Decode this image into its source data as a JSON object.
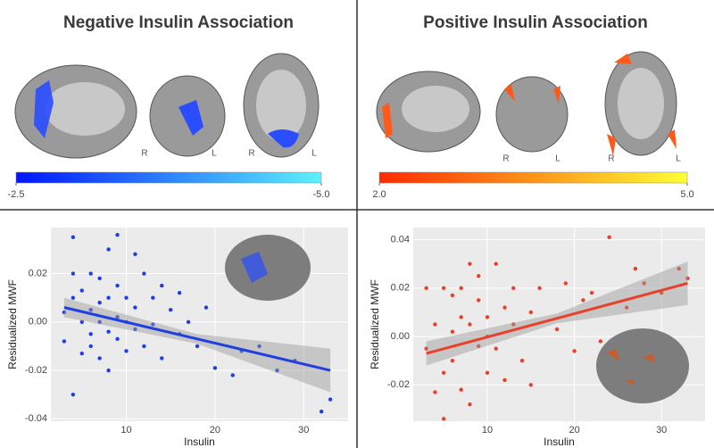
{
  "panels": [
    {
      "title": "Negative Insulin Association",
      "orientation_labels": [
        "R",
        "L",
        "R",
        "L"
      ],
      "colorbar": {
        "colors": [
          "#0015ff",
          "#5cf2ff"
        ],
        "range": [
          -2.5,
          -5
        ],
        "ticks": [
          -2.5,
          {
            "value": -5,
            "label": "-5.0"
          }
        ]
      }
    },
    {
      "title": "Positive Insulin Association",
      "orientation_labels": [
        "R",
        "L",
        "R",
        "L"
      ],
      "colorbar": {
        "colors": [
          "#ff2a00",
          "#ffff33"
        ],
        "range": [
          2,
          5
        ],
        "ticks": [
          {
            "value": 2,
            "label": "2.0"
          },
          {
            "value": 5,
            "label": "5.0"
          }
        ]
      }
    }
  ],
  "chart_data": [
    {
      "type": "scatter",
      "xlabel": "Insulin",
      "ylabel": "Residualized MWF",
      "color": "#1f3fe0",
      "fit_color": "#1f3fe0",
      "xlim": [
        1.5,
        35
      ],
      "ylim": [
        -0.041,
        0.039
      ],
      "xticks": [
        10,
        20,
        30
      ],
      "yticks": [
        {
          "value": -0.04,
          "label": "-0.04"
        },
        {
          "value": -0.02,
          "label": "-0.02"
        },
        {
          "value": 0,
          "label": "0.00"
        },
        {
          "value": 0.02,
          "label": "0.02"
        }
      ],
      "x": [
        3,
        3,
        4,
        4,
        4,
        4,
        5,
        5,
        5,
        6,
        6,
        6,
        6,
        7,
        7,
        7,
        7,
        8,
        8,
        8,
        8,
        9,
        9,
        9,
        9,
        10,
        10,
        10,
        11,
        11,
        11,
        12,
        12,
        13,
        13,
        14,
        14,
        15,
        16,
        16,
        17,
        18,
        19,
        20,
        22,
        23,
        25,
        27,
        32,
        33,
        29
      ],
      "values": [
        0.004,
        -0.008,
        0.035,
        0.02,
        -0.03,
        0.01,
        0.013,
        0,
        -0.013,
        0.02,
        0.005,
        -0.005,
        -0.01,
        0.018,
        0.008,
        0,
        -0.015,
        0.03,
        0.01,
        -0.004,
        -0.02,
        0.036,
        0.015,
        0.002,
        -0.007,
        0.01,
        -0.012,
        0,
        0.028,
        0.006,
        -0.003,
        0.02,
        -0.01,
        0.01,
        -0.001,
        0.015,
        -0.015,
        0.005,
        0.012,
        -0.005,
        0,
        -0.01,
        0.006,
        -0.019,
        -0.022,
        -0.012,
        -0.01,
        -0.02,
        -0.037,
        -0.032,
        -0.016
      ],
      "fit": {
        "x": [
          3,
          18,
          33
        ],
        "values": [
          0.006,
          -0.007,
          -0.02
        ],
        "lower": [
          0.002,
          -0.009,
          -0.029
        ],
        "upper": [
          0.01,
          -0.005,
          -0.011
        ]
      }
    },
    {
      "type": "scatter",
      "xlabel": "Insulin",
      "ylabel": "Residualized MWF",
      "color": "#e8402a",
      "fit_color": "#e8402a",
      "xlim": [
        1.5,
        35
      ],
      "ylim": [
        -0.035,
        0.045
      ],
      "xticks": [
        10,
        20,
        30
      ],
      "yticks": [
        {
          "value": -0.02,
          "label": "-0.02"
        },
        {
          "value": 0,
          "label": "0.00"
        },
        {
          "value": 0.02,
          "label": "0.02"
        },
        {
          "value": 0.04,
          "label": "0.04"
        }
      ],
      "x": [
        3,
        3,
        4,
        4,
        5,
        5,
        5,
        6,
        6,
        6,
        7,
        7,
        7,
        8,
        8,
        8,
        9,
        9,
        9,
        10,
        10,
        10,
        11,
        11,
        12,
        12,
        13,
        13,
        14,
        15,
        15,
        16,
        18,
        19,
        20,
        21,
        22,
        24,
        26,
        27,
        28,
        30,
        32,
        33,
        23
      ],
      "values": [
        0.02,
        -0.005,
        -0.023,
        0.005,
        0.02,
        -0.015,
        -0.034,
        0.017,
        0.002,
        -0.01,
        0.02,
        -0.022,
        0.008,
        0.03,
        0.005,
        -0.028,
        0.015,
        -0.004,
        0.025,
        0.008,
        -0.015,
        0,
        0.03,
        -0.005,
        0.012,
        -0.018,
        0.005,
        0.02,
        -0.01,
        0.01,
        -0.02,
        0.02,
        0.003,
        0.022,
        -0.006,
        0.015,
        0.018,
        0.041,
        0.012,
        0.028,
        0.022,
        0.018,
        0.028,
        0.024,
        -0.002
      ],
      "fit": {
        "x": [
          3,
          18,
          33
        ],
        "values": [
          -0.007,
          0.0075,
          0.022
        ],
        "lower": [
          -0.012,
          0.0055,
          0.013
        ],
        "upper": [
          -0.002,
          0.0095,
          0.031
        ]
      }
    }
  ]
}
